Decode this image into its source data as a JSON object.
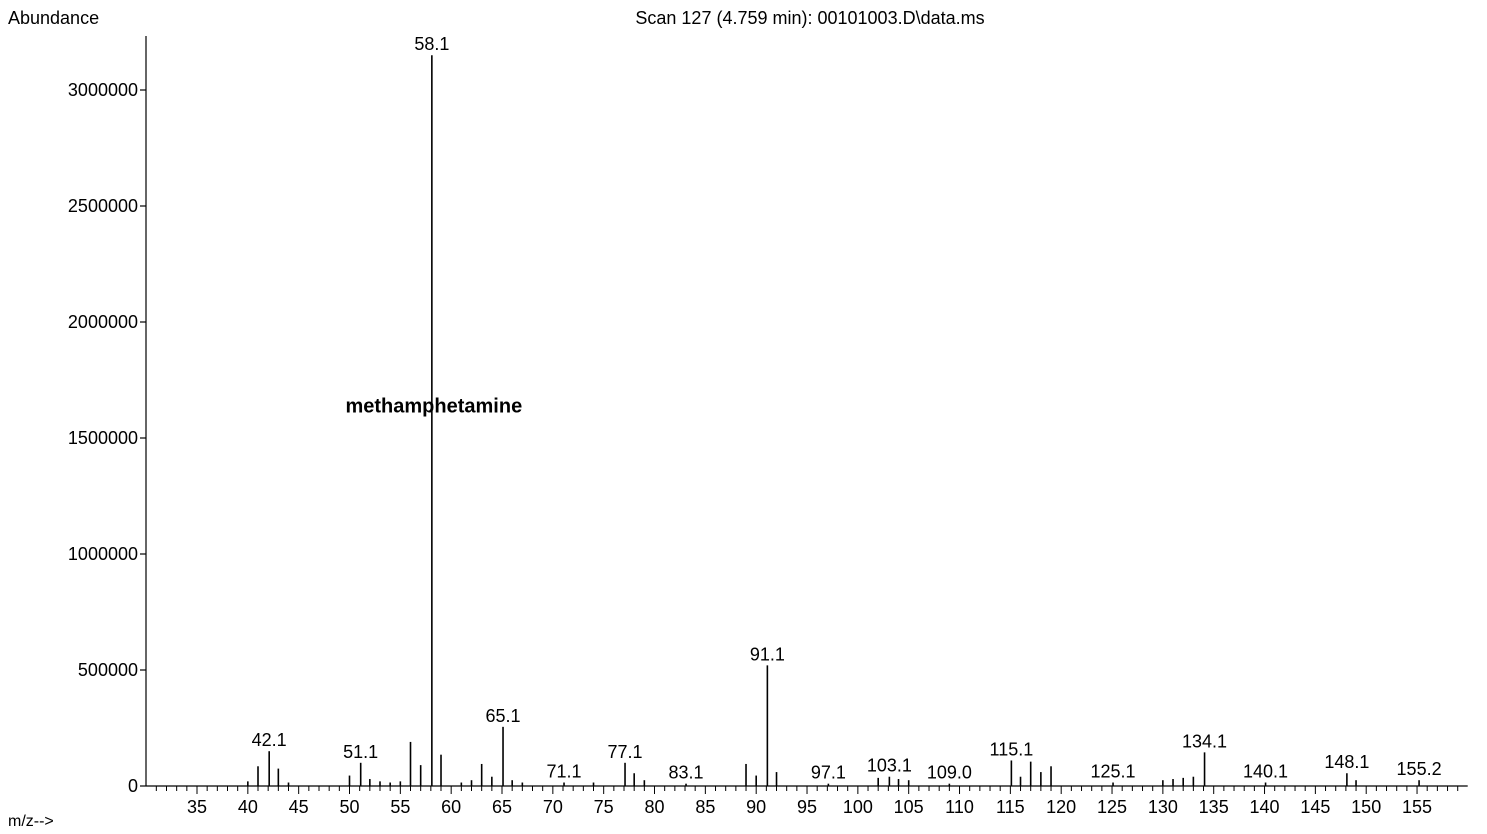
{
  "chart_data": {
    "type": "bar",
    "title": "Scan 127 (4.759 min): 00101003.D\\data.ms",
    "ylabel": "Abundance",
    "xlabel": "m/z-->",
    "xlim": [
      30,
      159
    ],
    "ylim": [
      0,
      3200000
    ],
    "yticks": [
      0,
      500000,
      1000000,
      1500000,
      2000000,
      2500000,
      3000000
    ],
    "ytick_labels": [
      "0",
      "500000",
      "1000000",
      "1500000",
      "2000000",
      "2500000",
      "3000000"
    ],
    "xticks": [
      35,
      40,
      45,
      50,
      55,
      60,
      65,
      70,
      75,
      80,
      85,
      90,
      95,
      100,
      105,
      110,
      115,
      120,
      125,
      130,
      135,
      140,
      145,
      150,
      155
    ],
    "xtick_labels": [
      "35",
      "40",
      "45",
      "50",
      "55",
      "60",
      "65",
      "70",
      "75",
      "80",
      "85",
      "90",
      "95",
      "100",
      "105",
      "110",
      "115",
      "120",
      "125",
      "130",
      "135",
      "140",
      "145",
      "150",
      "155"
    ],
    "grid": false,
    "series": [
      {
        "peaks": [
          {
            "mz": 40.0,
            "abundance": 20000
          },
          {
            "mz": 41.0,
            "abundance": 85000
          },
          {
            "mz": 42.1,
            "abundance": 150000,
            "label": "42.1"
          },
          {
            "mz": 43.0,
            "abundance": 75000
          },
          {
            "mz": 44.0,
            "abundance": 15000
          },
          {
            "mz": 50.0,
            "abundance": 45000
          },
          {
            "mz": 51.1,
            "abundance": 100000,
            "label": "51.1"
          },
          {
            "mz": 52.0,
            "abundance": 30000
          },
          {
            "mz": 53.0,
            "abundance": 20000
          },
          {
            "mz": 54.0,
            "abundance": 15000
          },
          {
            "mz": 55.0,
            "abundance": 20000
          },
          {
            "mz": 56.0,
            "abundance": 190000
          },
          {
            "mz": 57.0,
            "abundance": 90000
          },
          {
            "mz": 58.1,
            "abundance": 3150000,
            "label": "58.1"
          },
          {
            "mz": 59.0,
            "abundance": 135000
          },
          {
            "mz": 61.0,
            "abundance": 15000
          },
          {
            "mz": 62.0,
            "abundance": 25000
          },
          {
            "mz": 63.0,
            "abundance": 95000
          },
          {
            "mz": 64.0,
            "abundance": 40000
          },
          {
            "mz": 65.1,
            "abundance": 255000,
            "label": "65.1"
          },
          {
            "mz": 66.0,
            "abundance": 25000
          },
          {
            "mz": 67.0,
            "abundance": 15000
          },
          {
            "mz": 71.1,
            "abundance": 15000,
            "label": "71.1"
          },
          {
            "mz": 74.0,
            "abundance": 15000
          },
          {
            "mz": 77.1,
            "abundance": 100000,
            "label": "77.1"
          },
          {
            "mz": 78.0,
            "abundance": 55000
          },
          {
            "mz": 79.0,
            "abundance": 25000
          },
          {
            "mz": 83.1,
            "abundance": 10000,
            "label": "83.1"
          },
          {
            "mz": 89.0,
            "abundance": 95000
          },
          {
            "mz": 90.0,
            "abundance": 45000
          },
          {
            "mz": 91.1,
            "abundance": 520000,
            "label": "91.1"
          },
          {
            "mz": 92.0,
            "abundance": 60000
          },
          {
            "mz": 97.1,
            "abundance": 10000,
            "label": "97.1"
          },
          {
            "mz": 102.0,
            "abundance": 35000
          },
          {
            "mz": 103.1,
            "abundance": 40000,
            "label": "103.1"
          },
          {
            "mz": 104.0,
            "abundance": 30000
          },
          {
            "mz": 105.0,
            "abundance": 25000
          },
          {
            "mz": 109.0,
            "abundance": 10000,
            "label": "109.0"
          },
          {
            "mz": 115.1,
            "abundance": 110000,
            "label": "115.1"
          },
          {
            "mz": 116.0,
            "abundance": 40000
          },
          {
            "mz": 117.0,
            "abundance": 105000
          },
          {
            "mz": 118.0,
            "abundance": 60000
          },
          {
            "mz": 119.0,
            "abundance": 85000
          },
          {
            "mz": 125.1,
            "abundance": 15000,
            "label": "125.1"
          },
          {
            "mz": 130.0,
            "abundance": 25000
          },
          {
            "mz": 131.0,
            "abundance": 30000
          },
          {
            "mz": 132.0,
            "abundance": 35000
          },
          {
            "mz": 133.0,
            "abundance": 40000
          },
          {
            "mz": 134.1,
            "abundance": 145000,
            "label": "134.1"
          },
          {
            "mz": 140.1,
            "abundance": 15000,
            "label": "140.1"
          },
          {
            "mz": 148.1,
            "abundance": 55000,
            "label": "148.1"
          },
          {
            "mz": 149.0,
            "abundance": 25000
          },
          {
            "mz": 155.2,
            "abundance": 25000,
            "label": "155.2"
          }
        ]
      }
    ],
    "annotations": [
      {
        "text": "methamphetamine"
      }
    ]
  }
}
